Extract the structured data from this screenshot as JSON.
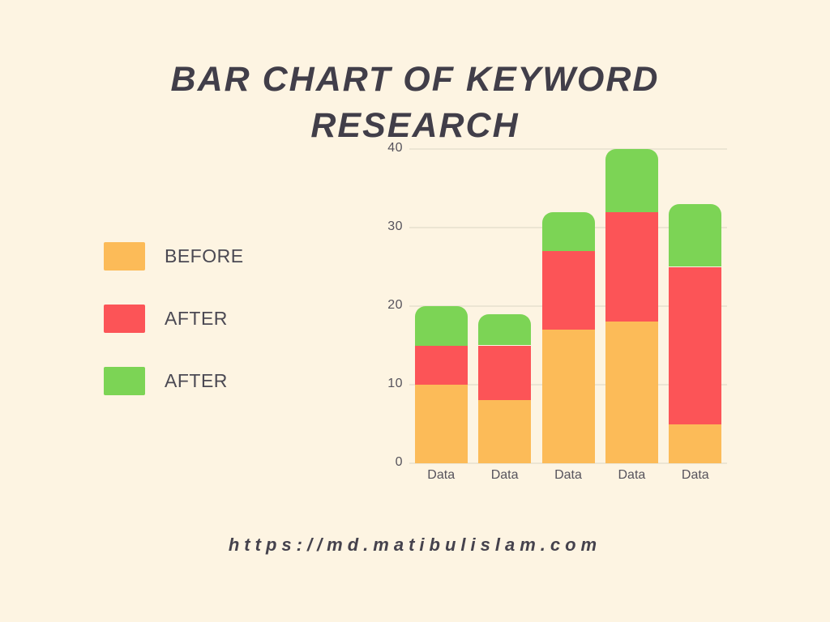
{
  "page": {
    "background": "#FDF4E2"
  },
  "title": {
    "line1": "BAR CHART OF KEYWORD",
    "line2": "RESEARCH",
    "color": "#413E49"
  },
  "legend": {
    "items": [
      {
        "label": "BEFORE",
        "color": "#FCBB58"
      },
      {
        "label": "AFTER",
        "color": "#FC5457"
      },
      {
        "label": "AFTER",
        "color": "#7CD455"
      }
    ]
  },
  "footer": {
    "url": "https://md.matibulislam.com"
  },
  "chart_data": {
    "type": "bar",
    "stacked": true,
    "title": "BAR CHART OF KEYWORD RESEARCH",
    "categories": [
      "Data",
      "Data",
      "Data",
      "Data",
      "Data"
    ],
    "series": [
      {
        "name": "BEFORE",
        "color": "#FCBB58",
        "values": [
          10,
          8,
          17,
          18,
          5
        ]
      },
      {
        "name": "AFTER",
        "color": "#FC5457",
        "values": [
          5,
          7,
          10,
          14,
          20
        ]
      },
      {
        "name": "AFTER",
        "color": "#7CD455",
        "values": [
          5,
          4,
          5,
          8,
          8
        ]
      }
    ],
    "stack_totals": [
      20,
      19,
      32,
      40,
      33
    ],
    "xlabel": "",
    "ylabel": "",
    "ylim": [
      0,
      40
    ],
    "yticks": [
      0,
      10,
      20,
      30,
      40
    ],
    "grid": true,
    "gridline_color": "#ECE5D3",
    "legend_position": "left",
    "bar_top_radius_px": 13
  }
}
